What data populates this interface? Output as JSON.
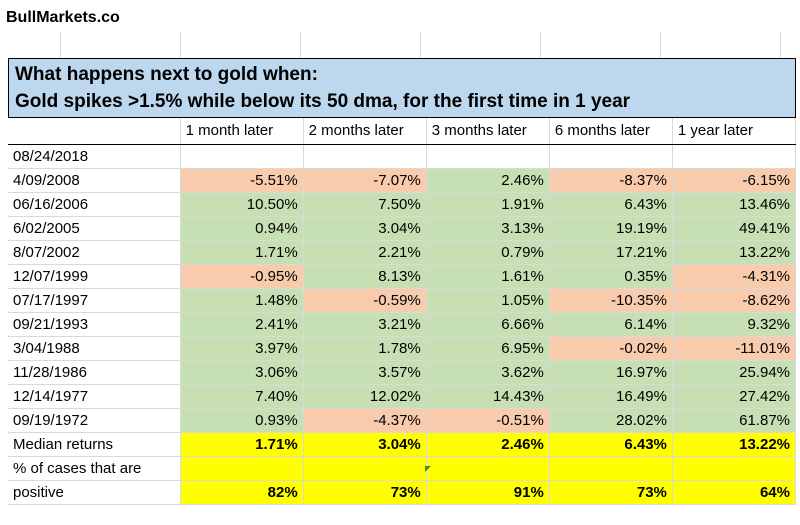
{
  "brand": "BullMarkets.co",
  "title_line1": "What happens next to gold when:",
  "title_line2": "Gold spikes >1.5% while below its 50 dma, for the first time in 1 year",
  "colors": {
    "title_bg": "#bdd7ee",
    "positive": "#c6e0b4",
    "negative": "#f8cbad",
    "summary": "#ffff00"
  },
  "columns": [
    "1 month later",
    "2 months later",
    "3 months later",
    "6 months later",
    "1 year later"
  ],
  "current_date": "08/24/2018",
  "rows": [
    {
      "date": "4/09/2008",
      "values": [
        "-5.51%",
        "-7.07%",
        "2.46%",
        "-8.37%",
        "-6.15%"
      ]
    },
    {
      "date": "06/16/2006",
      "values": [
        "10.50%",
        "7.50%",
        "1.91%",
        "6.43%",
        "13.46%"
      ]
    },
    {
      "date": "6/02/2005",
      "values": [
        "0.94%",
        "3.04%",
        "3.13%",
        "19.19%",
        "49.41%"
      ]
    },
    {
      "date": "8/07/2002",
      "values": [
        "1.71%",
        "2.21%",
        "0.79%",
        "17.21%",
        "13.22%"
      ]
    },
    {
      "date": "12/07/1999",
      "values": [
        "-0.95%",
        "8.13%",
        "1.61%",
        "0.35%",
        "-4.31%"
      ]
    },
    {
      "date": "07/17/1997",
      "values": [
        "1.48%",
        "-0.59%",
        "1.05%",
        "-10.35%",
        "-8.62%"
      ]
    },
    {
      "date": "09/21/1993",
      "values": [
        "2.41%",
        "3.21%",
        "6.66%",
        "6.14%",
        "9.32%"
      ]
    },
    {
      "date": "3/04/1988",
      "values": [
        "3.97%",
        "1.78%",
        "6.95%",
        "-0.02%",
        "-11.01%"
      ]
    },
    {
      "date": "11/28/1986",
      "values": [
        "3.06%",
        "3.57%",
        "3.62%",
        "16.97%",
        "25.94%"
      ]
    },
    {
      "date": "12/14/1977",
      "values": [
        "7.40%",
        "12.02%",
        "14.43%",
        "16.49%",
        "27.42%"
      ]
    },
    {
      "date": "09/19/1972",
      "values": [
        "0.93%",
        "-4.37%",
        "-0.51%",
        "28.02%",
        "61.87%"
      ]
    }
  ],
  "median": {
    "label": "Median returns",
    "values": [
      "1.71%",
      "3.04%",
      "2.46%",
      "6.43%",
      "13.22%"
    ]
  },
  "positive": {
    "label_line1": "% of cases that are",
    "label_line2": "positive",
    "values": [
      "82%",
      "73%",
      "91%",
      "73%",
      "64%"
    ]
  }
}
